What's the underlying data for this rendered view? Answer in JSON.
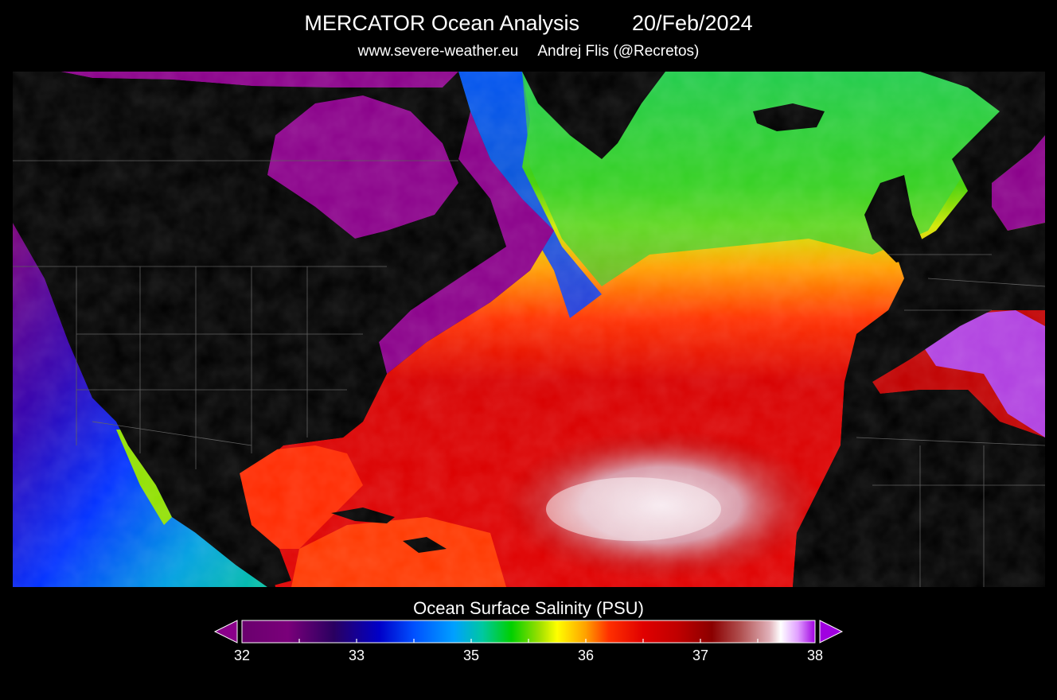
{
  "header": {
    "title": "MERCATOR Ocean Analysis",
    "date": "20/Feb/2024",
    "website": "www.severe-weather.eu",
    "author": "Andrej Flis (@Recretos)"
  },
  "legend": {
    "title": "Ocean Surface Salinity (PSU)",
    "min": 32,
    "max": 38,
    "tick_labels": [
      "32",
      "33",
      "35",
      "36",
      "37",
      "38"
    ],
    "color_stops": [
      "#6a006e",
      "#7a007a",
      "#2a0060",
      "#0000c8",
      "#0050ff",
      "#00a0ff",
      "#00c8a0",
      "#00d000",
      "#a0e000",
      "#ffff00",
      "#ffa000",
      "#ff3000",
      "#e00000",
      "#c00000",
      "#8b0000",
      "#b05050",
      "#e0b0b8",
      "#ffffff",
      "#e0a0ff",
      "#a000e0"
    ]
  }
}
